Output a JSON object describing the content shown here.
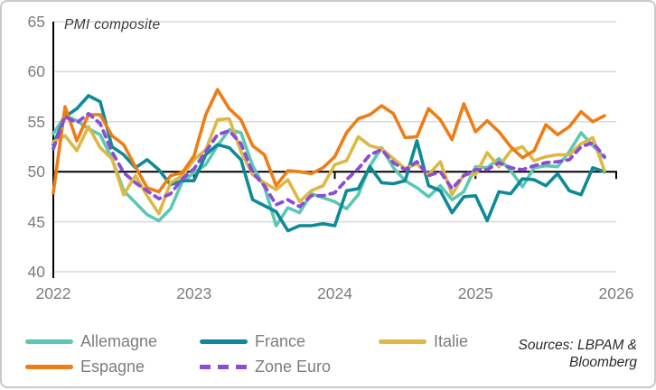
{
  "card": {
    "title": "PMI composite"
  },
  "sources": {
    "line1": "Sources: LBPAM &",
    "line2": "Bloomberg"
  },
  "colors": {
    "grid": "#d9d9d9",
    "axis": "#000000",
    "tick_text": "#7d7d7d",
    "allemagne": "#5bc8b3",
    "france": "#0e8a96",
    "italie": "#ddb843",
    "espagne": "#ee7d16",
    "zone_euro": "#8c4cd6"
  },
  "legend_display_order": [
    "Allemagne",
    "Espagne",
    "France",
    "Zone Euro",
    "Italie"
  ],
  "chart_data": {
    "type": "line",
    "title": "PMI composite",
    "xlabel": "",
    "ylabel": "",
    "ylim": [
      40,
      65
    ],
    "y_ticks": [
      65,
      60,
      55,
      50,
      45,
      40
    ],
    "x_tick_labels": [
      "2022",
      "2023",
      "2024",
      "2025",
      "2026"
    ],
    "x_frequency": "monthly",
    "x_range": "Jan 2022 - Dec 2025",
    "months_count": 48,
    "reference_line": 50,
    "grid": "horizontal-only",
    "legend_position": "bottom",
    "series": [
      {
        "name": "Allemagne",
        "color": "#5bc8b3",
        "dash": false,
        "values": [
          53.8,
          55.6,
          55.1,
          54.3,
          53.7,
          51.3,
          48.1,
          46.9,
          45.7,
          45.1,
          46.3,
          49.0,
          49.9,
          50.7,
          52.6,
          54.2,
          53.9,
          50.6,
          48.5,
          44.6,
          46.4,
          45.9,
          47.8,
          47.4,
          47.0,
          46.3,
          47.7,
          50.6,
          52.4,
          50.4,
          49.1,
          48.4,
          47.5,
          48.6,
          47.2,
          48.0,
          50.5,
          50.4,
          51.3,
          50.1,
          48.5,
          50.4,
          50.6,
          50.5,
          52.0,
          53.9,
          52.6,
          51.4
        ]
      },
      {
        "name": "France",
        "color": "#0e8a96",
        "dash": false,
        "values": [
          52.7,
          55.5,
          56.3,
          57.6,
          57.0,
          52.5,
          51.7,
          50.4,
          51.2,
          50.2,
          48.7,
          49.1,
          49.1,
          51.7,
          52.7,
          52.4,
          51.2,
          47.2,
          46.6,
          46.0,
          44.1,
          44.6,
          44.6,
          44.8,
          44.6,
          48.1,
          48.3,
          50.5,
          48.9,
          48.8,
          49.1,
          53.1,
          48.6,
          48.1,
          45.9,
          47.5,
          47.6,
          45.1,
          48.0,
          47.8,
          49.3,
          49.2,
          48.6,
          49.8,
          48.1,
          47.7,
          50.4,
          50.0
        ]
      },
      {
        "name": "Italie",
        "color": "#ddb843",
        "dash": false,
        "values": [
          53.0,
          53.6,
          52.1,
          54.5,
          52.4,
          51.3,
          47.7,
          49.6,
          47.6,
          45.8,
          48.9,
          49.6,
          51.2,
          52.2,
          55.2,
          55.3,
          52.0,
          49.7,
          48.9,
          48.2,
          49.2,
          47.0,
          48.1,
          48.6,
          50.7,
          51.1,
          53.5,
          52.6,
          52.3,
          51.3,
          50.3,
          50.8,
          49.7,
          51.0,
          47.7,
          49.7,
          49.7,
          51.9,
          50.5,
          52.1,
          52.5,
          51.1,
          51.5,
          51.7,
          51.7,
          52.8,
          53.4,
          50.1
        ]
      },
      {
        "name": "Espagne",
        "color": "#ee7d16",
        "dash": false,
        "values": [
          47.9,
          56.5,
          53.1,
          55.7,
          55.7,
          53.6,
          52.7,
          50.5,
          48.4,
          48.0,
          49.6,
          49.9,
          51.6,
          55.7,
          58.2,
          56.3,
          55.2,
          52.6,
          51.7,
          48.6,
          50.1,
          50.0,
          49.8,
          50.4,
          51.5,
          53.9,
          55.3,
          55.7,
          56.6,
          55.8,
          53.4,
          53.5,
          56.3,
          55.2,
          53.2,
          56.8,
          54.0,
          55.1,
          54.0,
          52.5,
          51.4,
          52.1,
          54.7,
          53.7,
          54.5,
          56.0,
          55.0,
          55.6
        ]
      },
      {
        "name": "Zone Euro",
        "color": "#8c4cd6",
        "dash": true,
        "values": [
          52.3,
          55.5,
          54.9,
          55.8,
          54.8,
          52.0,
          49.9,
          48.9,
          48.1,
          47.3,
          47.8,
          49.3,
          50.3,
          52.0,
          53.7,
          54.1,
          52.8,
          49.9,
          48.6,
          46.7,
          47.2,
          46.5,
          47.6,
          47.6,
          47.9,
          49.2,
          50.3,
          51.7,
          52.2,
          50.9,
          50.2,
          51.0,
          49.6,
          50.0,
          48.3,
          49.6,
          50.2,
          50.2,
          50.9,
          50.4,
          50.2,
          50.6,
          50.9,
          51.0,
          51.2,
          52.5,
          52.9,
          51.5
        ]
      }
    ]
  }
}
